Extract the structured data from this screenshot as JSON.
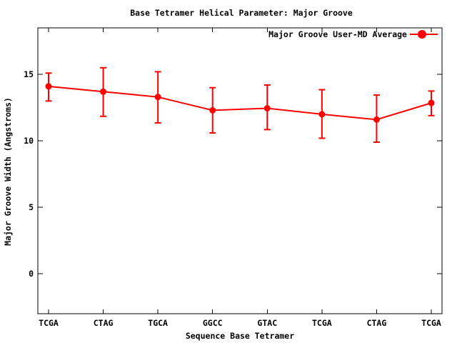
{
  "chart_data": {
    "type": "line",
    "title": "Base Tetramer Helical Parameter: Major Groove",
    "xlabel": "Sequence Base Tetramer",
    "ylabel": "Major Groove Width (Angstroms)",
    "legend_position": "top-right-inside",
    "grid": false,
    "categories": [
      "TCGA",
      "CTAG",
      "TGCA",
      "GGCC",
      "GTAC",
      "TCGA",
      "CTAG",
      "TCGA"
    ],
    "series": [
      {
        "name": "Major Groove User-MD Average",
        "marker": "filled-circle",
        "values": [
          14.1,
          13.7,
          13.3,
          12.3,
          12.45,
          12.0,
          11.6,
          12.85
        ],
        "error_low": [
          13.0,
          11.85,
          11.35,
          10.6,
          10.85,
          10.2,
          9.9,
          11.9
        ],
        "error_high": [
          15.1,
          15.5,
          15.2,
          14.0,
          14.2,
          13.85,
          13.45,
          13.75
        ]
      }
    ],
    "yticks": [
      0,
      5,
      10,
      15
    ],
    "ylim": [
      -3,
      18.5
    ],
    "colors": {
      "series": "#ff0000",
      "frame": "#000000",
      "text": "#000000",
      "background": "#ffffff"
    }
  }
}
